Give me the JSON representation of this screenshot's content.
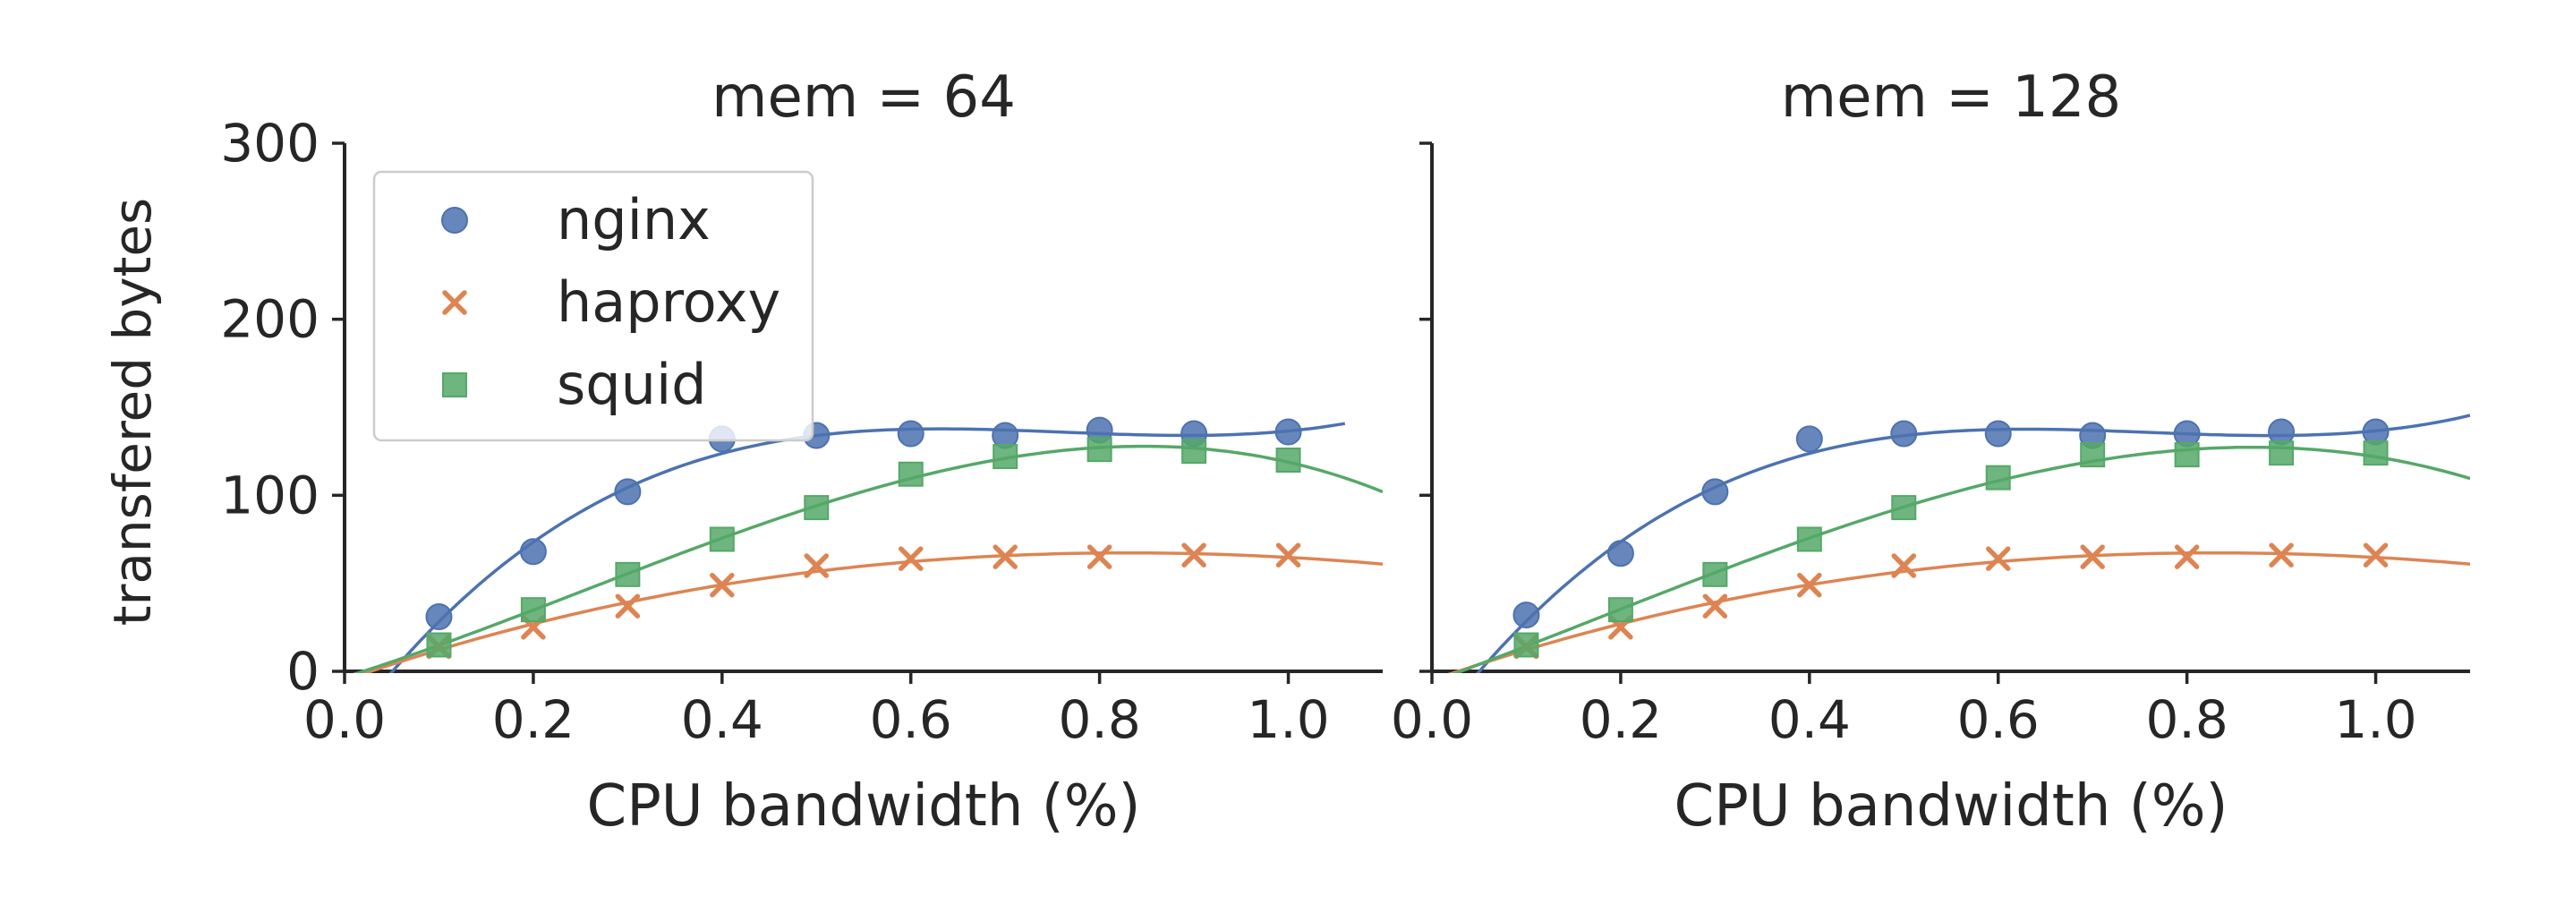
{
  "chart_data": {
    "type": "scatter",
    "ylabel": "transfered bytes",
    "xlim": [
      0.0,
      1.1
    ],
    "ylim": [
      0,
      300
    ],
    "xticks": [
      "0.0",
      "0.2",
      "0.4",
      "0.6",
      "0.8",
      "1.0"
    ],
    "yticks": [
      "0",
      "100",
      "200",
      "300"
    ],
    "grid": false,
    "legend": {
      "placement": "top-left of first panel",
      "entries": [
        {
          "label": "nginx",
          "color": "#4c72b0",
          "marker": "circle"
        },
        {
          "label": "haproxy",
          "color": "#dd8452",
          "marker": "x"
        },
        {
          "label": "squid",
          "color": "#55a868",
          "marker": "square"
        }
      ]
    },
    "panels": [
      {
        "title": "mem = 64",
        "xlabel": "CPU bandwidth (%)",
        "x": [
          0.1,
          0.2,
          0.3,
          0.4,
          0.5,
          0.6,
          0.7,
          0.8,
          0.9,
          1.0
        ],
        "series": [
          {
            "name": "nginx",
            "values": [
              31,
              68,
              102,
              132,
              134,
              135,
              134,
              137,
              135,
              136
            ],
            "fit_end": 1.06
          },
          {
            "name": "haproxy",
            "values": [
              14,
              25,
              37,
              49,
              60,
              64,
              65,
              65,
              66,
              66
            ],
            "fit_end": 1.1
          },
          {
            "name": "squid",
            "values": [
              15,
              35,
              55,
              75,
              93,
              112,
              122,
              126,
              125,
              120
            ],
            "fit_end": 1.1
          }
        ]
      },
      {
        "title": "mem = 128",
        "xlabel": "CPU bandwidth (%)",
        "x": [
          0.1,
          0.2,
          0.3,
          0.4,
          0.5,
          0.6,
          0.7,
          0.8,
          0.9,
          1.0
        ],
        "series": [
          {
            "name": "nginx",
            "values": [
              32,
              67,
              102,
              132,
              135,
              135,
              134,
              135,
              136,
              136
            ],
            "fit_end": 1.1
          },
          {
            "name": "haproxy",
            "values": [
              14,
              25,
              37,
              49,
              60,
              64,
              65,
              65,
              66,
              66
            ],
            "fit_end": 1.1
          },
          {
            "name": "squid",
            "values": [
              15,
              35,
              55,
              75,
              93,
              110,
              123,
              123,
              124,
              124
            ],
            "fit_end": 1.1
          }
        ]
      }
    ]
  }
}
